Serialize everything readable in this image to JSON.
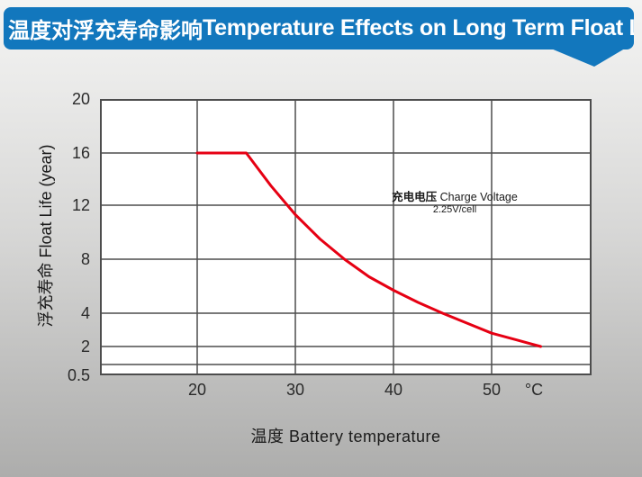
{
  "banner": {
    "title_zh": "温度对浮充寿命影响",
    "title_en": "Temperature Effects on Long Term Float Life"
  },
  "colors": {
    "banner_bg": "#1277bd",
    "banner_text": "#ffffff",
    "curve": "#e60013",
    "grid": "#4d4d4d",
    "plot_bg": "#ffffff",
    "text": "#1a1a1a"
  },
  "chart_data": {
    "type": "line",
    "title": "温度对浮充寿命影响 Temperature Effects on Long Term Float Life",
    "xlabel_zh": "温度",
    "xlabel_en": "Battery temperature",
    "xlabel": "温度  Battery temperature",
    "ylabel_zh": "浮充寿命",
    "ylabel_en": "Float Life (year)",
    "ylabel": "浮充寿命  Float Life (year)",
    "x_unit": "°C",
    "x_ticks": [
      20,
      30,
      40,
      50
    ],
    "y_tick_labels": [
      "20",
      "16",
      "12",
      "8",
      "4",
      "2",
      "0.5"
    ],
    "y_grid_values": [
      16,
      12,
      8,
      4,
      2,
      1
    ],
    "xlim": [
      10,
      60
    ],
    "ylim": [
      0.5,
      20
    ],
    "y_scale_note": "non-linear axis, compressed below 2",
    "grid": "on",
    "legend": "none",
    "annotation": {
      "line1_zh": "充电电压",
      "line1_en": "Charge Voltage",
      "line2": "2.25V/cell"
    },
    "series": [
      {
        "name": "浮充寿命 Float Life @ 2.25V/cell",
        "color": "#e60013",
        "points": [
          [
            20,
            16
          ],
          [
            25,
            16
          ],
          [
            27.5,
            13.5
          ],
          [
            30,
            11.3
          ],
          [
            32.5,
            9.5
          ],
          [
            35,
            8
          ],
          [
            37.5,
            6.7
          ],
          [
            40,
            5.7
          ],
          [
            42.5,
            4.8
          ],
          [
            45,
            4
          ],
          [
            47.5,
            3.4
          ],
          [
            50,
            2.8
          ],
          [
            52.5,
            2.4
          ],
          [
            55,
            2
          ]
        ]
      }
    ]
  }
}
